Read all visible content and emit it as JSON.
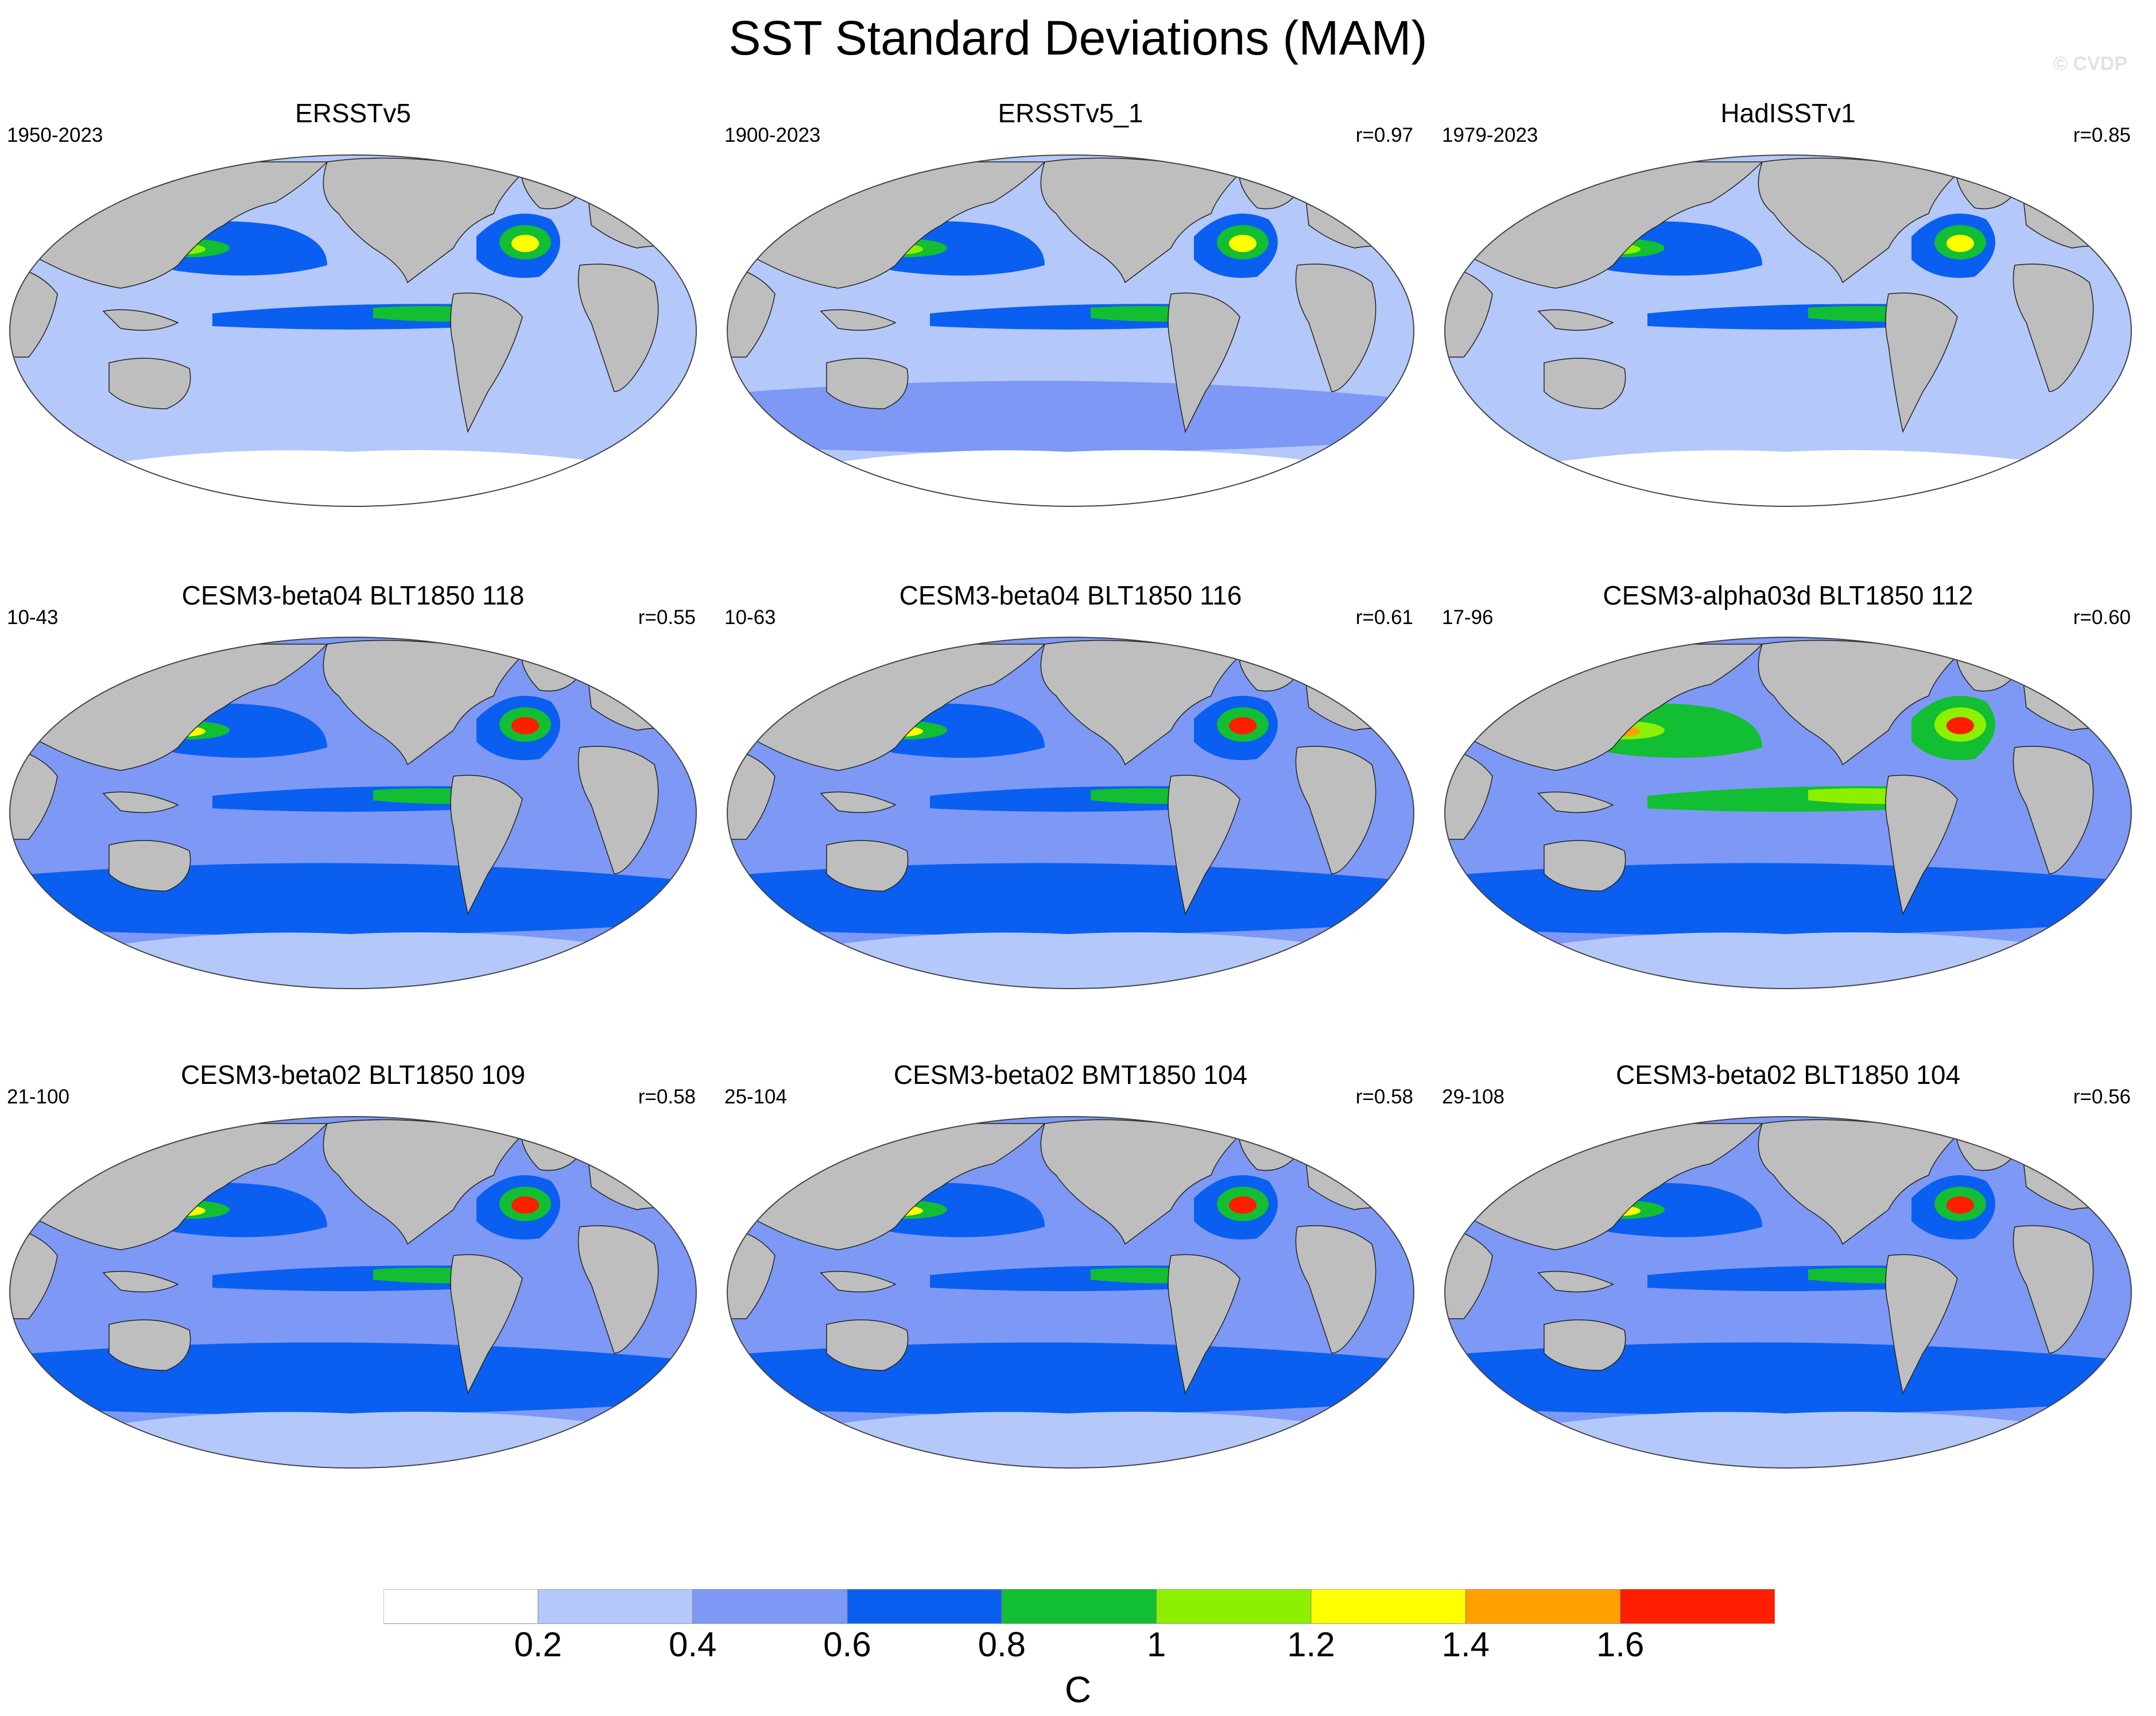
{
  "title": "SST Standard Deviations (MAM)",
  "watermark": "© CVDP",
  "colors": {
    "ocean_levels": [
      "#ffffff",
      "#b4c8fa",
      "#7d99f5",
      "#0a5ff0",
      "#12be32",
      "#8cf000",
      "#ffff00",
      "#ffa000",
      "#ff1e00"
    ],
    "land": "#bebebe",
    "coast": "#222222"
  },
  "panels": [
    {
      "name": "ERSSTv5",
      "period": "1950-2023",
      "r": ""
    },
    {
      "name": "ERSSTv5_1",
      "period": "1900-2023",
      "r": "r=0.97"
    },
    {
      "name": "HadISSTv1",
      "period": "1979-2023",
      "r": "r=0.85"
    },
    {
      "name": "CESM3-beta04 BLT1850 118",
      "period": "10-43",
      "r": "r=0.55"
    },
    {
      "name": "CESM3-beta04 BLT1850 116",
      "period": "10-63",
      "r": "r=0.61"
    },
    {
      "name": "CESM3-alpha03d BLT1850 112",
      "period": "17-96",
      "r": "r=0.60"
    },
    {
      "name": "CESM3-beta02 BLT1850 109",
      "period": "21-100",
      "r": "r=0.58"
    },
    {
      "name": "CESM3-beta02 BMT1850 104",
      "period": "25-104",
      "r": "r=0.58"
    },
    {
      "name": "CESM3-beta02 BLT1850 104",
      "period": "29-108",
      "r": "r=0.56"
    }
  ],
  "colorbar": {
    "labels": [
      "0.2",
      "0.4",
      "0.6",
      "0.8",
      "1",
      "1.2",
      "1.4",
      "1.6"
    ],
    "unit": "C"
  }
}
